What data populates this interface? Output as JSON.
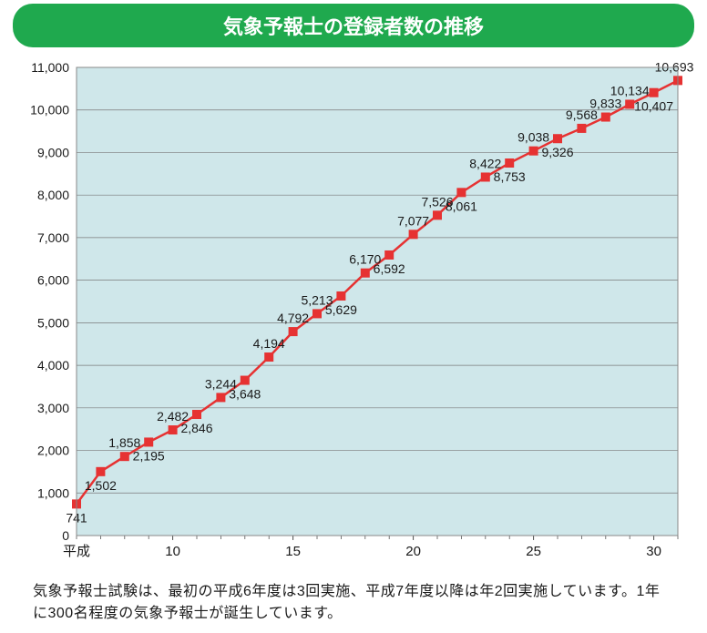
{
  "title": "気象予報士の登録者数の推移",
  "footer": "気象予報士試験は、最初の平成6年度は3回実施、平成7年度以降は年2回実施しています。1年に300名程度の気象予報士が誕生しています。",
  "chart": {
    "type": "line",
    "plot_bg": "#cfe7ea",
    "page_bg": "#ffffff",
    "axis_color": "#555555",
    "grid_color": "#7a7a7a",
    "border_color": "#888888",
    "line_color": "#e63232",
    "marker_color": "#e63232",
    "marker_size": 5,
    "line_width": 2.5,
    "label_font_size": 14,
    "data_label_font_size": 14,
    "data_label_color": "#1a1a1a",
    "x_axis_label_prefix": "平成",
    "ylim": [
      0,
      11000
    ],
    "y_ticks": [
      0,
      1000,
      2000,
      3000,
      4000,
      5000,
      6000,
      7000,
      8000,
      9000,
      10000,
      11000
    ],
    "y_tick_labels": [
      "0",
      "1,000",
      "2,000",
      "3,000",
      "4,000",
      "5,000",
      "6,000",
      "7,000",
      "8,000",
      "9,000",
      "10,000",
      "11,000"
    ],
    "x_start": 6,
    "x_end": 31,
    "x_ticks": [
      10,
      15,
      20,
      25,
      30
    ],
    "series_x": [
      6,
      7,
      8,
      9,
      10,
      11,
      12,
      13,
      14,
      15,
      16,
      17,
      18,
      19,
      20,
      21,
      22,
      23,
      24,
      25,
      26,
      27,
      28,
      29,
      30,
      31
    ],
    "series_y": [
      741,
      1502,
      1858,
      2195,
      2482,
      2846,
      3244,
      3648,
      4194,
      4792,
      5213,
      5629,
      6170,
      6592,
      7077,
      7526,
      8061,
      8422,
      8753,
      9038,
      9326,
      9568,
      9833,
      10134,
      10407,
      10693
    ],
    "label_positions": [
      "below",
      "below",
      "above",
      "below",
      "above",
      "below",
      "above",
      "below",
      "above",
      "above",
      "above",
      "below",
      "above",
      "below",
      "above",
      "above",
      "below",
      "above",
      "below",
      "above",
      "below",
      "above",
      "above",
      "above",
      "below",
      "above"
    ]
  }
}
